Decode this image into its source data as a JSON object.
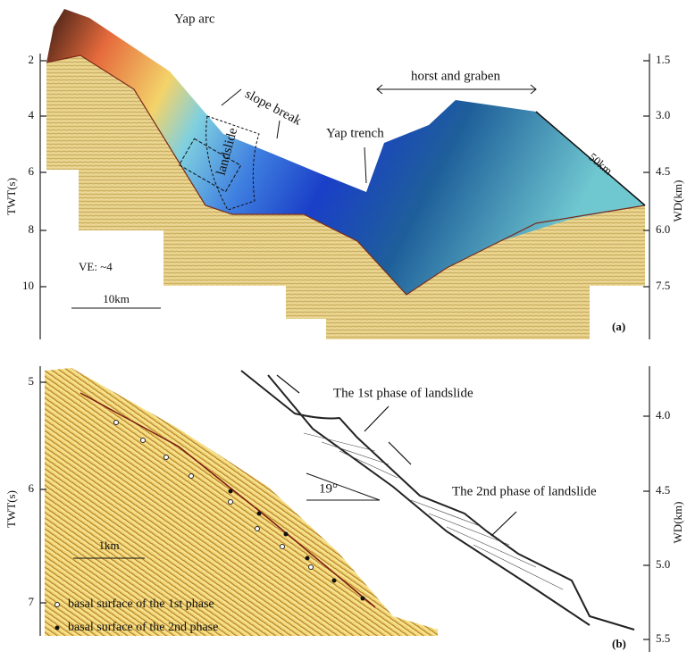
{
  "panel_a": {
    "label": "(a)",
    "left_axis": {
      "title": "TWT(s)",
      "ticks": [
        "2",
        "4",
        "6",
        "8",
        "10"
      ]
    },
    "right_axis": {
      "title": "WD(km)",
      "ticks": [
        "1.5",
        "3.0",
        "4.5",
        "6.0",
        "7.5"
      ]
    },
    "annotations": {
      "arc": "Yap arc",
      "slope_break": "slope break",
      "landslide": "landslide",
      "trench": "Yap trench",
      "horst": "horst and graben",
      "width": "50km"
    },
    "exaggeration": "VE: ~4",
    "scale_bar": "10km"
  },
  "panel_b": {
    "label": "(b)",
    "left_axis": {
      "title": "TWT(s)",
      "ticks": [
        "5",
        "6",
        "7"
      ]
    },
    "right_axis": {
      "title": "WD(km)",
      "ticks": [
        "4.0",
        "4.5",
        "5.0",
        "5.5"
      ]
    },
    "annotations": {
      "phase1": "The 1st phase of landslide",
      "phase2": "The 2nd phase of landslide",
      "angle": "19°"
    },
    "scale_bar": "1km",
    "legend": [
      "basal surface of the 1st phase",
      "basal surface of the 2nd phase"
    ]
  }
}
